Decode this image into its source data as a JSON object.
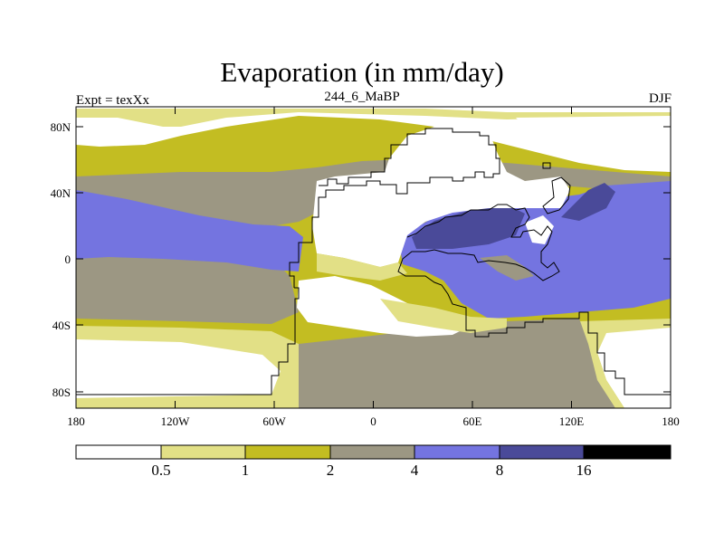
{
  "title": "Evaporation (in mm/day)",
  "left_label": "Expt = texXx",
  "center_label": "244_6_MaBP",
  "right_label": "DJF",
  "lat_ticks": [
    "80N",
    "40N",
    "0",
    "40S",
    "80S"
  ],
  "lon_ticks": [
    "180",
    "120W",
    "60W",
    "0",
    "60E",
    "120E",
    "180"
  ],
  "colorbar": {
    "colors": [
      "#ffffff",
      "#e2e086",
      "#c3bd22",
      "#9c9783",
      "#7474e0",
      "#4a4a99",
      "#000000"
    ],
    "labels": [
      "0.5",
      "1",
      "2",
      "4",
      "8",
      "16"
    ]
  },
  "palette": {
    "lt_05": "#ffffff",
    "r05_1": "#e2e086",
    "r1_2": "#c3bd22",
    "r2_4": "#9c9783",
    "r4_8": "#7474e0",
    "r8_16": "#4a4a99",
    "gt_16": "#000000"
  }
}
